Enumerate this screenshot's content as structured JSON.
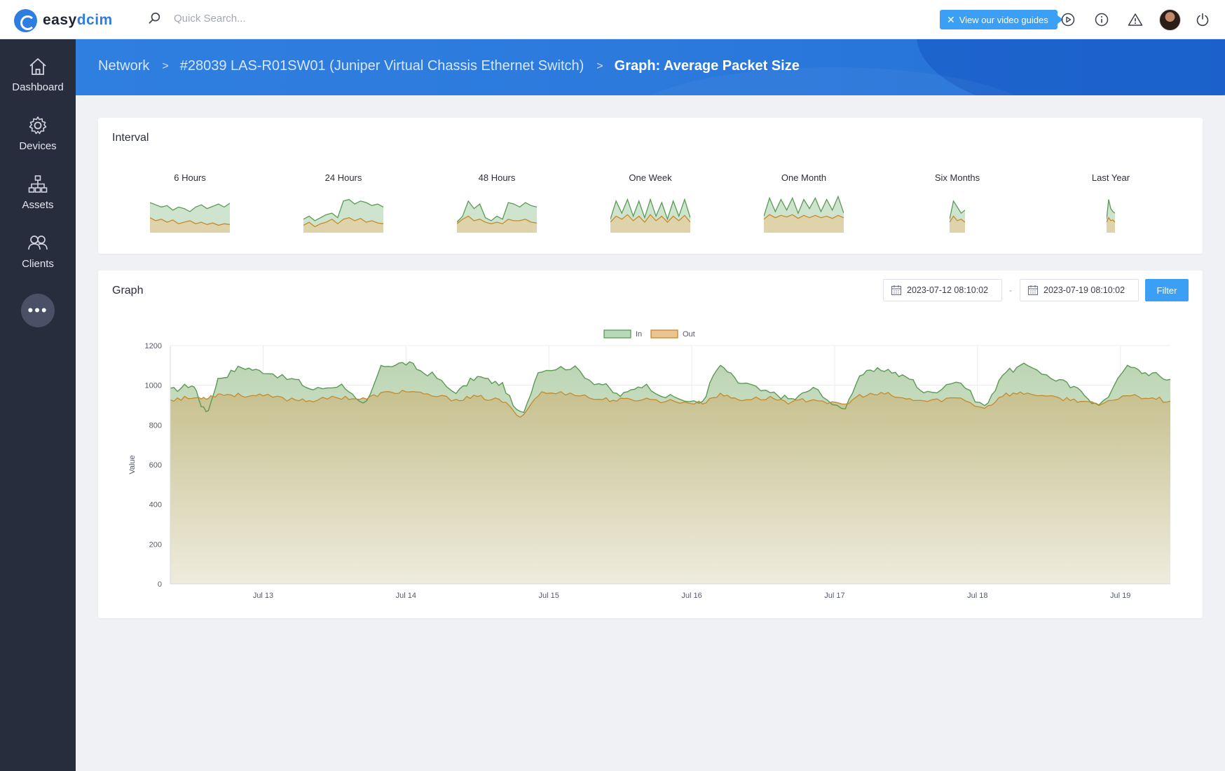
{
  "app": {
    "name_part1": "easy",
    "name_part2": "dcim"
  },
  "search": {
    "placeholder": "Quick Search..."
  },
  "topbar": {
    "video_guide_label": "View our video guides"
  },
  "sidebar": {
    "items": [
      {
        "label": "Dashboard",
        "icon": "home-icon"
      },
      {
        "label": "Devices",
        "icon": "gear-icon"
      },
      {
        "label": "Assets",
        "icon": "sitemap-icon"
      },
      {
        "label": "Clients",
        "icon": "users-icon"
      }
    ],
    "more_label": "•••"
  },
  "breadcrumb": {
    "items": [
      "Network",
      "#28039 LAS-R01SW01 (Juniper Virtual Chassis Ethernet Switch)",
      "Graph: Average Packet Size"
    ]
  },
  "interval": {
    "title": "Interval",
    "options": [
      "6 Hours",
      "24 Hours",
      "48 Hours",
      "One Week",
      "One Month",
      "Six Months",
      "Last Year"
    ]
  },
  "graph": {
    "title": "Graph",
    "date_from": "2023-07-12 08:10:02",
    "date_separator": "-",
    "date_to": "2023-07-19 08:10:02",
    "filter_label": "Filter"
  },
  "colors": {
    "in_line": "#5b9a55",
    "in_fill": "#b9d8b9",
    "out_line": "#c58a2a",
    "out_fill": "#ecc48f",
    "accent": "#3ba0f5",
    "sidebar": "#272d3d"
  },
  "chart_data": {
    "type": "area",
    "ylabel": "Value",
    "ylim": [
      0,
      1200
    ],
    "yticks": [
      0,
      200,
      400,
      600,
      800,
      1000,
      1200
    ],
    "xtick_labels": [
      "Jul 13",
      "Jul 14",
      "Jul 15",
      "Jul 16",
      "Jul 17",
      "Jul 18",
      "Jul 19"
    ],
    "x_range_days": [
      0,
      7
    ],
    "grid": true,
    "legend_position": "top-center",
    "series": [
      {
        "name": "In",
        "x_days": [
          0,
          0.15,
          0.25,
          0.35,
          0.5,
          0.65,
          0.85,
          1.0,
          1.2,
          1.35,
          1.5,
          1.65,
          1.8,
          2.0,
          2.15,
          2.3,
          2.45,
          2.6,
          2.8,
          3.0,
          3.15,
          3.3,
          3.5,
          3.7,
          3.85,
          4.0,
          4.2,
          4.35,
          4.5,
          4.7,
          4.85,
          5.0,
          5.15,
          5.3,
          5.5,
          5.7,
          5.85,
          6.0,
          6.2,
          6.35,
          6.5,
          6.7,
          6.85,
          7.0
        ],
        "values": [
          975,
          1000,
          870,
          1040,
          1090,
          1070,
          1030,
          980,
          1000,
          900,
          1100,
          1110,
          1060,
          970,
          1040,
          1010,
          860,
          1080,
          1090,
          1010,
          950,
          1000,
          940,
          910,
          1090,
          1010,
          960,
          930,
          980,
          880,
          1060,
          1080,
          1040,
          960,
          1020,
          900,
          1070,
          1100,
          1030,
          980,
          900,
          1090,
          1060,
          1030
        ]
      },
      {
        "name": "Out",
        "x_days": [
          0,
          0.15,
          0.25,
          0.35,
          0.5,
          0.65,
          0.85,
          1.0,
          1.2,
          1.35,
          1.5,
          1.65,
          1.8,
          2.0,
          2.15,
          2.3,
          2.45,
          2.6,
          2.8,
          3.0,
          3.15,
          3.3,
          3.5,
          3.7,
          3.85,
          4.0,
          4.2,
          4.35,
          4.5,
          4.7,
          4.85,
          5.0,
          5.15,
          5.3,
          5.5,
          5.7,
          5.85,
          6.0,
          6.2,
          6.35,
          6.5,
          6.7,
          6.85,
          7.0
        ],
        "values": [
          930,
          935,
          940,
          955,
          950,
          945,
          930,
          925,
          940,
          930,
          960,
          970,
          950,
          930,
          940,
          925,
          850,
          960,
          960,
          930,
          925,
          930,
          920,
          910,
          950,
          930,
          935,
          915,
          930,
          900,
          950,
          955,
          930,
          920,
          935,
          890,
          955,
          960,
          935,
          925,
          900,
          950,
          940,
          920
        ]
      }
    ]
  },
  "sparklines": [
    {
      "in": [
        990,
        975,
        960,
        970,
        940,
        960,
        950,
        930,
        960,
        975,
        950,
        965,
        980,
        960,
        985
      ],
      "out": [
        890,
        870,
        880,
        860,
        875,
        850,
        860,
        870,
        850,
        860,
        845,
        855,
        840,
        850,
        845
      ]
    },
    {
      "in": [
        880,
        900,
        870,
        890,
        910,
        920,
        890,
        1000,
        1010,
        980,
        1000,
        990,
        970,
        980,
        960
      ],
      "out": [
        840,
        860,
        830,
        850,
        860,
        880,
        850,
        880,
        890,
        870,
        885,
        860,
        870,
        855,
        850
      ]
    },
    {
      "in": [
        860,
        900,
        1000,
        950,
        980,
        890,
        870,
        900,
        880,
        990,
        980,
        960,
        990,
        970,
        960
      ],
      "out": [
        850,
        880,
        900,
        870,
        880,
        860,
        850,
        860,
        850,
        880,
        870,
        870,
        880,
        860,
        855
      ]
    },
    {
      "in": [
        880,
        1000,
        920,
        1010,
        900,
        1000,
        890,
        1010,
        900,
        990,
        880,
        1000,
        900,
        1010,
        890
      ],
      "out": [
        860,
        900,
        880,
        910,
        870,
        900,
        860,
        910,
        870,
        900,
        860,
        900,
        870,
        905,
        860
      ]
    },
    {
      "in": [
        900,
        1020,
        930,
        1010,
        940,
        1020,
        920,
        1010,
        950,
        1020,
        930,
        1010,
        940,
        1030,
        920
      ],
      "out": [
        880,
        910,
        890,
        905,
        895,
        910,
        885,
        905,
        890,
        905,
        890,
        900,
        885,
        905,
        890
      ]
    },
    {
      "in": [
        880,
        1000,
        960,
        920,
        940
      ],
      "out": [
        860,
        900,
        870,
        880,
        860
      ]
    },
    {
      "in": [
        880,
        1010,
        950,
        930,
        920
      ],
      "out": [
        860,
        890,
        870,
        875,
        860
      ]
    }
  ]
}
